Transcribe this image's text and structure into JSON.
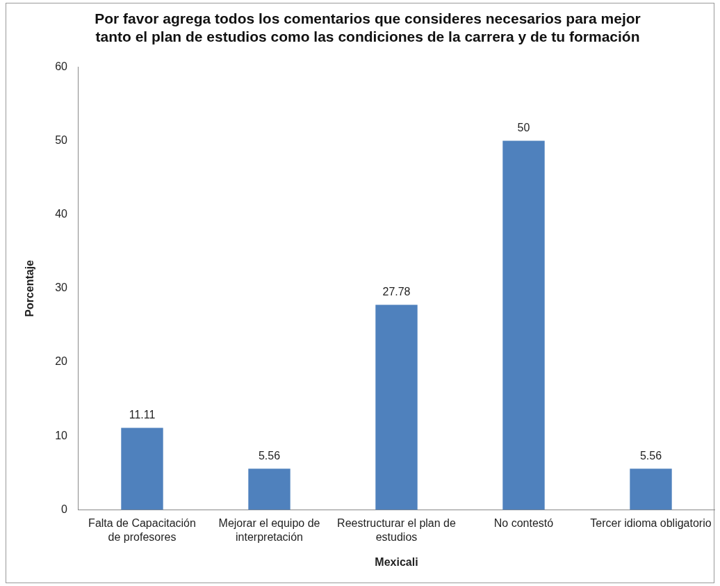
{
  "chart_data": {
    "type": "bar",
    "title": "Por favor agrega todos los comentarios que consideres necesarios para mejor tanto el plan de estudios como las condiciones de la carrera y de tu formación",
    "xlabel": "Mexicali",
    "ylabel": "Porcentaje",
    "categories": [
      "Falta de Capacitación de profesores",
      "Mejorar el equipo de interpretación",
      "Reestructurar el plan de estudios",
      "No contestó",
      "Tercer idioma obligatorio"
    ],
    "values": [
      11.11,
      5.56,
      27.78,
      50,
      5.56
    ],
    "color": "#4f81bd",
    "ylim": [
      0,
      60
    ],
    "yticks": [
      0,
      10,
      20,
      30,
      40,
      50,
      60
    ],
    "grid": false,
    "legend": false,
    "data_labels": true
  }
}
